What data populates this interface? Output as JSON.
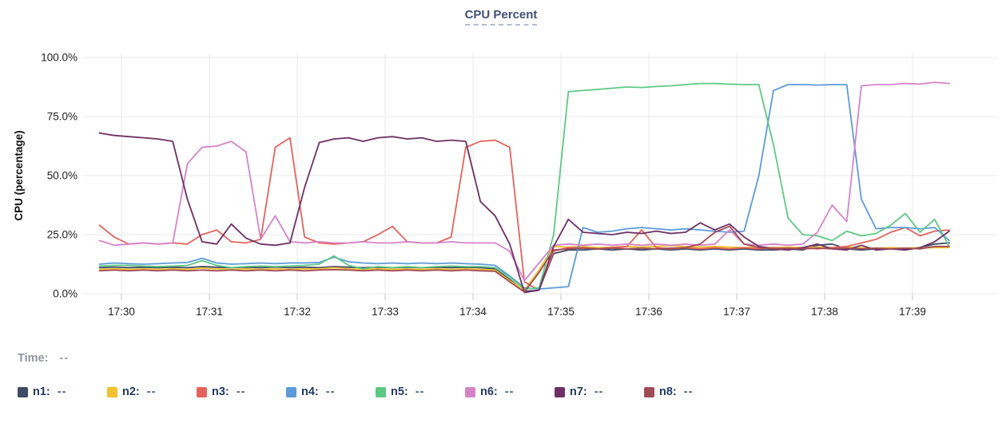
{
  "title": "CPU Percent",
  "y_axis_label": "CPU (percentage)",
  "time_readout": {
    "label": "Time:",
    "value": "--"
  },
  "legend": [
    {
      "id": "n1",
      "label": "n1:",
      "value": "--",
      "color": "#3e4a66"
    },
    {
      "id": "n2",
      "label": "n2:",
      "value": "--",
      "color": "#f2c12e"
    },
    {
      "id": "n3",
      "label": "n3:",
      "value": "--",
      "color": "#e4635c"
    },
    {
      "id": "n4",
      "label": "n4:",
      "value": "--",
      "color": "#5b9bd8"
    },
    {
      "id": "n5",
      "label": "n5:",
      "value": "--",
      "color": "#5dc983"
    },
    {
      "id": "n6",
      "label": "n6:",
      "value": "--",
      "color": "#d583c9"
    },
    {
      "id": "n7",
      "label": "n7:",
      "value": "--",
      "color": "#6e2f66"
    },
    {
      "id": "n8",
      "label": "n8:",
      "value": "--",
      "color": "#a04b58"
    }
  ],
  "chart_data": {
    "type": "line",
    "title": "CPU Percent",
    "xlabel": "",
    "ylabel": "CPU (percentage)",
    "grid": true,
    "legend_position": "bottom",
    "ylim": [
      0,
      100
    ],
    "y_tick_values": [
      0,
      25,
      50,
      75,
      100
    ],
    "y_tick_labels": [
      "0.0%",
      "25.0%",
      "50.0%",
      "75.0%",
      "100.0%"
    ],
    "x_tick_minutes": [
      30,
      31,
      32,
      33,
      34,
      35,
      36,
      37,
      38,
      39
    ],
    "x_tick_labels": [
      "17:30",
      "17:31",
      "17:32",
      "17:33",
      "17:34",
      "17:35",
      "17:36",
      "17:37",
      "17:38",
      "17:39"
    ],
    "x_start_min": 29.75,
    "x_step_min": 0.1667,
    "units": "percent",
    "series": [
      {
        "name": "n1",
        "color": "#3e4a66",
        "values": [
          11,
          11.3,
          11,
          11.2,
          11,
          11.2,
          11,
          11.5,
          11.2,
          11,
          11.2,
          11,
          11.3,
          11,
          11.2,
          11,
          11.5,
          11.2,
          11,
          11.2,
          11,
          11.2,
          11,
          11.2,
          11,
          11.2,
          11,
          10.5,
          6,
          1,
          1.5,
          17,
          18.5,
          18.5,
          19,
          18.5,
          19,
          18.5,
          19,
          18.5,
          19,
          18.5,
          19,
          18.5,
          19,
          18.5,
          18.5,
          19,
          18.5,
          20.5,
          21,
          19,
          18.5,
          19,
          19.5,
          19,
          19.5,
          21,
          21.5
        ]
      },
      {
        "name": "n2",
        "color": "#f2c12e",
        "values": [
          10.3,
          10.5,
          10.3,
          10.5,
          10.3,
          10.5,
          10.3,
          10.8,
          10.5,
          10.3,
          10.5,
          10.3,
          10.5,
          10.3,
          10.5,
          10.5,
          11,
          10.5,
          10.3,
          10.5,
          10.3,
          10.5,
          10.3,
          10.5,
          10.3,
          10.5,
          10.3,
          10,
          5.5,
          1.5,
          10,
          20,
          19.7,
          20,
          19.5,
          19.7,
          20,
          19.7,
          20,
          20.3,
          20,
          19.7,
          20,
          19.7,
          19.5,
          19.7,
          19.5,
          19.7,
          19.5,
          19.7,
          19.5,
          19.7,
          19.5,
          19.3,
          19.5,
          19.3,
          19.5,
          19.5,
          19.5
        ]
      },
      {
        "name": "n3",
        "color": "#e4635c",
        "values": [
          29,
          24,
          21,
          21.5,
          21,
          21.5,
          21,
          25,
          27,
          22,
          21.5,
          23,
          62,
          66,
          24,
          21.5,
          21,
          21.5,
          22,
          25,
          28.5,
          22,
          21.5,
          21.5,
          24,
          62,
          64.5,
          65,
          62,
          5,
          1.5,
          18,
          19.5,
          19.5,
          19,
          19.5,
          20,
          27,
          19.5,
          19,
          19.5,
          19,
          19.5,
          19,
          19.5,
          19,
          19.5,
          19,
          19.5,
          19,
          19.5,
          20,
          21.5,
          23,
          26,
          28,
          24.5,
          26.5,
          27
        ]
      },
      {
        "name": "n4",
        "color": "#5b9bd8",
        "values": [
          12.5,
          13,
          12.7,
          12.5,
          12.7,
          13,
          13.2,
          15,
          13,
          12.5,
          12.7,
          13,
          12.7,
          13,
          13,
          13.2,
          15.5,
          13.5,
          13,
          12.7,
          13,
          12.7,
          13,
          12.7,
          13,
          12.7,
          12.5,
          12,
          7.5,
          2.5,
          2,
          2.5,
          3,
          28,
          26,
          26.5,
          27.5,
          28,
          27.5,
          27,
          27.5,
          27,
          26.5,
          26,
          26.5,
          50,
          86,
          88.5,
          88.5,
          88.3,
          88.5,
          88.5,
          40,
          27.5,
          28,
          28,
          27.5,
          28,
          22.5
        ]
      },
      {
        "name": "n5",
        "color": "#5dc983",
        "values": [
          11.7,
          12,
          12,
          11.7,
          11.5,
          11.7,
          12,
          14,
          12,
          11,
          11.5,
          11.7,
          11.5,
          11.7,
          12,
          12.5,
          16,
          12,
          10.5,
          11.5,
          11,
          11.5,
          11,
          11.5,
          11.7,
          11.5,
          11.5,
          11,
          7,
          2,
          2.5,
          25,
          85.5,
          86,
          86.5,
          87,
          87.5,
          87.3,
          87.7,
          88,
          88.5,
          89,
          89,
          88.7,
          88.5,
          88.5,
          63,
          32,
          25,
          24.5,
          22.5,
          26.5,
          24.5,
          25.5,
          29,
          34,
          26,
          31.5,
          20
        ]
      },
      {
        "name": "n6",
        "color": "#d583c9",
        "values": [
          22.5,
          20.5,
          21,
          21.5,
          21,
          21.5,
          55,
          62,
          62.5,
          64.5,
          60,
          23,
          33,
          22,
          21.5,
          22,
          21.5,
          21.5,
          22,
          21.5,
          21.5,
          22,
          21.5,
          21.5,
          22,
          21.5,
          21.5,
          21.5,
          18,
          5.5,
          13,
          20.5,
          21,
          20.5,
          21,
          20.5,
          21,
          20.5,
          21,
          20.5,
          21,
          20.5,
          21,
          27,
          21,
          20.5,
          21,
          20.5,
          21,
          26,
          37.5,
          30.5,
          88,
          88.5,
          88.5,
          89,
          88.7,
          89.5,
          89
        ]
      },
      {
        "name": "n7",
        "color": "#6e2f66",
        "values": [
          68,
          67,
          66.5,
          66,
          65.5,
          64.5,
          40,
          22,
          21,
          29.5,
          23.5,
          21,
          20.5,
          21.5,
          45,
          64,
          65.5,
          66,
          64.5,
          66,
          66.5,
          65.5,
          66,
          64.5,
          65,
          64.5,
          39,
          33,
          21,
          0.5,
          1.5,
          20,
          31.5,
          26,
          25.5,
          25,
          26,
          25.5,
          26.5,
          25.5,
          26,
          30,
          27,
          29.5,
          24,
          20,
          19,
          18.5,
          19.5,
          21,
          19,
          18.5,
          20.5,
          18.5,
          19,
          18.5,
          19.5,
          22,
          26.5
        ]
      },
      {
        "name": "n8",
        "color": "#a04b58",
        "values": [
          9.7,
          10,
          9.7,
          10,
          9.7,
          10,
          9.7,
          10,
          9.7,
          10,
          9.7,
          10,
          9.7,
          10,
          9.7,
          10,
          10.2,
          10,
          9.7,
          10,
          9.7,
          10,
          9.7,
          10,
          9.7,
          10,
          9.7,
          9.5,
          5,
          0.7,
          9,
          18.5,
          19,
          19.3,
          19,
          19.3,
          19,
          19.3,
          19,
          19.3,
          19.5,
          21,
          26,
          28.5,
          21,
          19.5,
          19,
          19.3,
          19,
          19.3,
          19,
          19.3,
          19,
          19.3,
          19,
          19.3,
          19,
          20,
          20
        ]
      }
    ]
  }
}
